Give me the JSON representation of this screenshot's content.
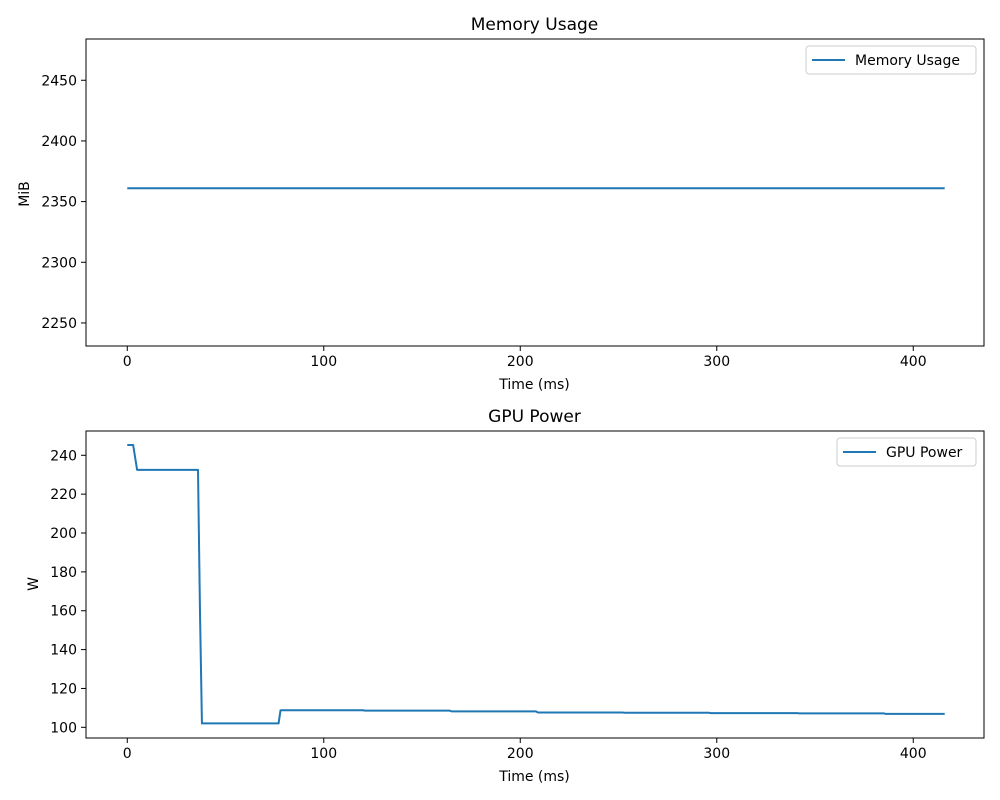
{
  "chart_data": [
    {
      "type": "line",
      "title": "Memory Usage",
      "xlabel": "Time (ms)",
      "ylabel": "MiB",
      "xlim": [
        -21,
        436
      ],
      "ylim": [
        2231,
        2484
      ],
      "xticks": [
        0,
        100,
        200,
        300,
        400
      ],
      "yticks": [
        2250,
        2300,
        2350,
        2400,
        2450
      ],
      "grid": false,
      "legend_position": "top-right",
      "color": "#1f77b4",
      "series": [
        {
          "name": "Memory Usage",
          "x": [
            0,
            416
          ],
          "y": [
            2361,
            2361
          ]
        }
      ]
    },
    {
      "type": "line",
      "title": "GPU Power",
      "xlabel": "Time (ms)",
      "ylabel": "W",
      "xlim": [
        -21,
        436
      ],
      "ylim": [
        94.5,
        252.5
      ],
      "xticks": [
        0,
        100,
        200,
        300,
        400
      ],
      "yticks": [
        100,
        120,
        140,
        160,
        180,
        200,
        220,
        240
      ],
      "grid": false,
      "legend_position": "top-right",
      "color": "#1f77b4",
      "series": [
        {
          "name": "GPU Power",
          "x": [
            0,
            3,
            5,
            36,
            37,
            38,
            77,
            78,
            120,
            121,
            164,
            165,
            208,
            209,
            252,
            253,
            296,
            297,
            341,
            342,
            385,
            386,
            416
          ],
          "y": [
            245.3,
            245.3,
            232.5,
            232.5,
            160,
            102,
            102,
            108.8,
            108.8,
            108.6,
            108.6,
            108.2,
            108.2,
            107.6,
            107.6,
            107.5,
            107.5,
            107.3,
            107.3,
            107.2,
            107.2,
            106.9,
            106.9
          ]
        }
      ]
    }
  ]
}
